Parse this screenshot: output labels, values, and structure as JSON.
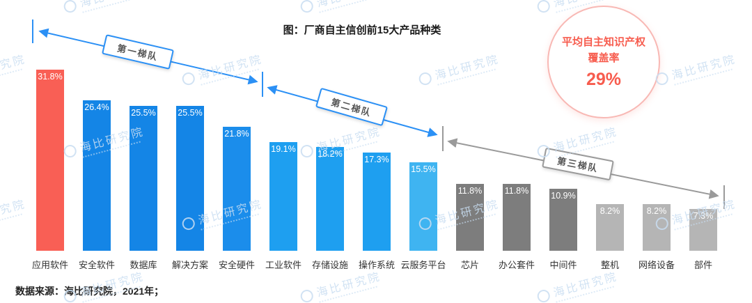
{
  "title": "图：厂商自主信创前15大产品种类",
  "source_note": "数据来源：海比研究院，2021年；",
  "watermark": {
    "text": "海比研究院"
  },
  "annotation": {
    "line1": "平均自主知识产权",
    "line2": "覆盖率",
    "value": "29%",
    "text_color": "#f75c4e",
    "border_color": "#f8b8b4"
  },
  "tiers": [
    {
      "label": "第一梯队",
      "color": "#2b90f5"
    },
    {
      "label": "第二梯队",
      "color": "#2b90f5"
    },
    {
      "label": "第三梯队",
      "color": "#9a9a9a"
    }
  ],
  "chart_data": {
    "type": "bar",
    "title": "图：厂商自主信创前15大产品种类",
    "categories": [
      "应用软件",
      "安全软件",
      "数据库",
      "解决方案",
      "安全硬件",
      "工业软件",
      "存储设施",
      "操作系统",
      "云服务平台",
      "芯片",
      "办公套件",
      "中间件",
      "整机",
      "网络设备",
      "部件"
    ],
    "values": [
      31.8,
      26.4,
      25.5,
      25.5,
      21.8,
      19.1,
      18.2,
      17.3,
      15.5,
      11.8,
      11.8,
      10.9,
      8.2,
      8.2,
      7.3
    ],
    "value_labels": [
      "31.8%",
      "26.4%",
      "25.5%",
      "25.5%",
      "21.8%",
      "19.1%",
      "18.2%",
      "17.3%",
      "15.5%",
      "11.8%",
      "11.8%",
      "10.9%",
      "8.2%",
      "8.2%",
      "7.3%"
    ],
    "bar_colors": [
      "#f95f55",
      "#1485e6",
      "#1485e6",
      "#1485e6",
      "#1b8deb",
      "#1e9ff0",
      "#1e9ff0",
      "#1e9ff0",
      "#3fb4f1",
      "#7d7d7d",
      "#7d7d7d",
      "#7d7d7d",
      "#b5b5b5",
      "#b5b5b5",
      "#b5b5b5"
    ],
    "xlabel": "",
    "ylabel": "",
    "ylim": [
      0,
      33
    ],
    "grid": false,
    "legend": "none",
    "value_label_position": "inside-top",
    "value_label_color": "#ffffff"
  }
}
